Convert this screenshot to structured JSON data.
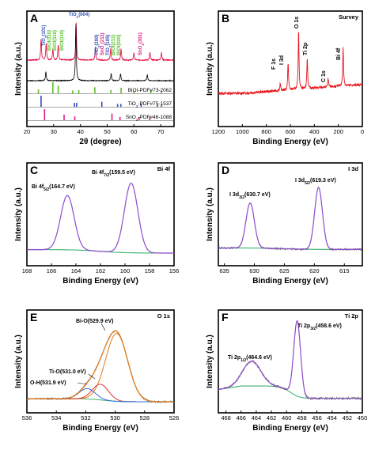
{
  "colors": {
    "sample_A": "#e4003a",
    "sample_B": "#000000",
    "bioi": "#5bbf2a",
    "tio2": "#2e4fb5",
    "sno2": "#d8208a",
    "survey": "#e8141c",
    "raw": "#555555",
    "env": "#8e4fd0",
    "bg": "#3cb371",
    "bi_o": "#e07b1c",
    "ti_o": "#d9342e",
    "o_h": "#2d6fd8"
  },
  "chart_data": [
    {
      "id": "A",
      "type": "line",
      "panel_letter": "A",
      "xlabel": "2θ (degree)",
      "ylabel": "Intensity (a.u.)",
      "xlim": [
        20,
        75
      ],
      "xticks": [
        20,
        30,
        40,
        50,
        60,
        70
      ],
      "series": [
        {
          "name": "",
          "color": "#e4003a",
          "peaks": [
            [
              25.3,
              0.55
            ],
            [
              27.2,
              0.45
            ],
            [
              29.7,
              0.3
            ],
            [
              31.7,
              0.4
            ],
            [
              38.4,
              1.0
            ],
            [
              45.6,
              0.35
            ],
            [
              51.3,
              0.3
            ],
            [
              55.2,
              0.3
            ],
            [
              60.0,
              0.2
            ],
            [
              66.0,
              0.2
            ],
            [
              70.3,
              0.2
            ]
          ]
        },
        {
          "name": "",
          "color": "#000000",
          "peaks": [
            [
              27.1,
              0.15
            ],
            [
              38.3,
              0.95
            ],
            [
              51.5,
              0.12
            ],
            [
              55.0,
              0.12
            ],
            [
              65.0,
              0.1
            ]
          ]
        }
      ],
      "peak_labels": [
        {
          "text": "TiO2(004)",
          "color": "#2e4fb5"
        },
        {
          "text": "TiO2(101)",
          "color": "#2e4fb5"
        },
        {
          "text": "BiOI(110)",
          "color": "#5bbf2a"
        },
        {
          "text": "BiOI(110)",
          "color": "#5bbf2a"
        },
        {
          "text": "BiOI(110)",
          "color": "#5bbf2a"
        },
        {
          "text": "TiO2(200)",
          "color": "#2e4fb5"
        },
        {
          "text": "SnO2(211)",
          "color": "#d8208a"
        },
        {
          "text": "TiO2(105)",
          "color": "#2e4fb5"
        },
        {
          "text": "BiOI(212)",
          "color": "#5bbf2a"
        },
        {
          "text": "BiOI(020)",
          "color": "#5bbf2a"
        },
        {
          "text": "SnO2(301)",
          "color": "#d8208a"
        }
      ],
      "reference_patterns": [
        {
          "name": "BiOI-PDF#73-2062",
          "color": "#5bbf2a",
          "lines": [
            [
              24.3,
              0.35
            ],
            [
              29.7,
              1.0
            ],
            [
              31.7,
              0.7
            ],
            [
              37.1,
              0.25
            ],
            [
              39.4,
              0.3
            ],
            [
              45.4,
              0.55
            ],
            [
              51.4,
              0.3
            ],
            [
              55.2,
              0.5
            ],
            [
              60.0,
              0.2
            ],
            [
              66.3,
              0.3
            ],
            [
              70.3,
              0.2
            ]
          ]
        },
        {
          "name": "TiO2-PDF#75-1537",
          "color": "#2e4fb5",
          "lines": [
            [
              25.3,
              1.0
            ],
            [
              37.8,
              0.35
            ],
            [
              38.6,
              0.35
            ],
            [
              48.0,
              0.45
            ],
            [
              53.9,
              0.25
            ],
            [
              55.1,
              0.25
            ],
            [
              62.7,
              0.25
            ],
            [
              68.8,
              0.15
            ],
            [
              70.3,
              0.15
            ]
          ]
        },
        {
          "name": "SnO2-PDF#46-1088",
          "color": "#d8208a",
          "lines": [
            [
              26.6,
              1.0
            ],
            [
              33.9,
              0.5
            ],
            [
              37.9,
              0.35
            ],
            [
              51.8,
              0.6
            ],
            [
              54.8,
              0.3
            ],
            [
              61.9,
              0.3
            ],
            [
              65.9,
              0.3
            ]
          ]
        }
      ]
    },
    {
      "id": "B",
      "type": "line",
      "panel_letter": "B",
      "corner_label": "Survey",
      "xlabel": "Binding Energy (eV)",
      "ylabel": "Intensity (a.u.)",
      "xlim": [
        1200,
        0
      ],
      "xticks": [
        1200,
        1000,
        800,
        600,
        400,
        200,
        0
      ],
      "peaks": [
        [
          685,
          0.1
        ],
        [
          619,
          0.4
        ],
        [
          531,
          0.85
        ],
        [
          459,
          0.45
        ],
        [
          285,
          0.12
        ],
        [
          160,
          0.55
        ]
      ],
      "annotations": [
        {
          "text": "F 1s",
          "x": 685
        },
        {
          "text": "I 3d",
          "x": 619
        },
        {
          "text": "O 1s",
          "x": 531
        },
        {
          "text": "Ti 2p",
          "x": 459
        },
        {
          "text": "C 1s",
          "x": 285
        },
        {
          "text": "Bi 4f",
          "x": 160
        }
      ]
    },
    {
      "id": "C",
      "type": "line",
      "panel_letter": "C",
      "corner_label": "Bi 4f",
      "xlabel": "Binding Energy (eV)",
      "ylabel": "Intensity (a.u.)",
      "xlim": [
        168,
        156
      ],
      "xticks": [
        168,
        166,
        164,
        162,
        160,
        158,
        156
      ],
      "peaks": [
        {
          "center": 164.7,
          "height": 0.78,
          "width": 0.55
        },
        {
          "center": 159.5,
          "height": 1.0,
          "width": 0.55
        }
      ],
      "annotations": [
        {
          "prefix": "Bi 4f",
          "sub": "5/2",
          "suffix": "(164.7 eV)"
        },
        {
          "prefix": "Bi 4f",
          "sub": "7/2",
          "suffix": "(159.5 eV)"
        }
      ]
    },
    {
      "id": "D",
      "type": "line",
      "panel_letter": "D",
      "corner_label": "I 3d",
      "xlabel": "Binding Energy (eV)",
      "ylabel": "Intensity (a.u.)",
      "xlim": [
        636,
        612
      ],
      "xticks": [
        635,
        630,
        625,
        620,
        615
      ],
      "peaks": [
        {
          "center": 630.7,
          "height": 0.62,
          "width": 0.7
        },
        {
          "center": 619.3,
          "height": 0.85,
          "width": 0.65
        }
      ],
      "annotations": [
        {
          "prefix": "I 3d",
          "sub": "3/2",
          "suffix": "(630.7 eV)"
        },
        {
          "prefix": "I 3d",
          "sub": "5/2",
          "suffix": "(619.3 eV)"
        }
      ]
    },
    {
      "id": "E",
      "type": "line",
      "panel_letter": "E",
      "corner_label": "O 1s",
      "xlabel": "Binding Energy (eV)",
      "ylabel": "Intensity (a.u.)",
      "xlim": [
        536,
        526
      ],
      "xticks": [
        536,
        534,
        532,
        530,
        528,
        526
      ],
      "components": [
        {
          "label": "Bi-O(529.9 eV)",
          "center": 529.9,
          "height": 0.78,
          "width": 0.75,
          "color": "#e07b1c"
        },
        {
          "label": "Ti-O(531.0 eV)",
          "center": 531.0,
          "height": 0.18,
          "width": 0.55,
          "color": "#d9342e"
        },
        {
          "label": "O-H(531.9 eV)",
          "center": 531.9,
          "height": 0.12,
          "width": 0.55,
          "color": "#2d6fd8"
        }
      ]
    },
    {
      "id": "F",
      "type": "line",
      "panel_letter": "F",
      "corner_label": "Ti 2p",
      "xlabel": "Binding Energy (eV)",
      "ylabel": "Intensity (a.u.)",
      "xlim": [
        469,
        450
      ],
      "xticks": [
        468,
        466,
        464,
        462,
        460,
        458,
        456,
        454,
        452,
        450
      ],
      "peaks": [
        {
          "center": 464.6,
          "height": 0.28,
          "width": 1.2
        },
        {
          "center": 458.6,
          "height": 0.85,
          "width": 0.45
        }
      ],
      "annotations": [
        {
          "prefix": "Ti 2p",
          "sub": "1/2",
          "suffix": "(464.6 eV)"
        },
        {
          "prefix": "Ti 2p",
          "sub": "3/2",
          "suffix": "(458.6 eV)"
        }
      ]
    }
  ]
}
